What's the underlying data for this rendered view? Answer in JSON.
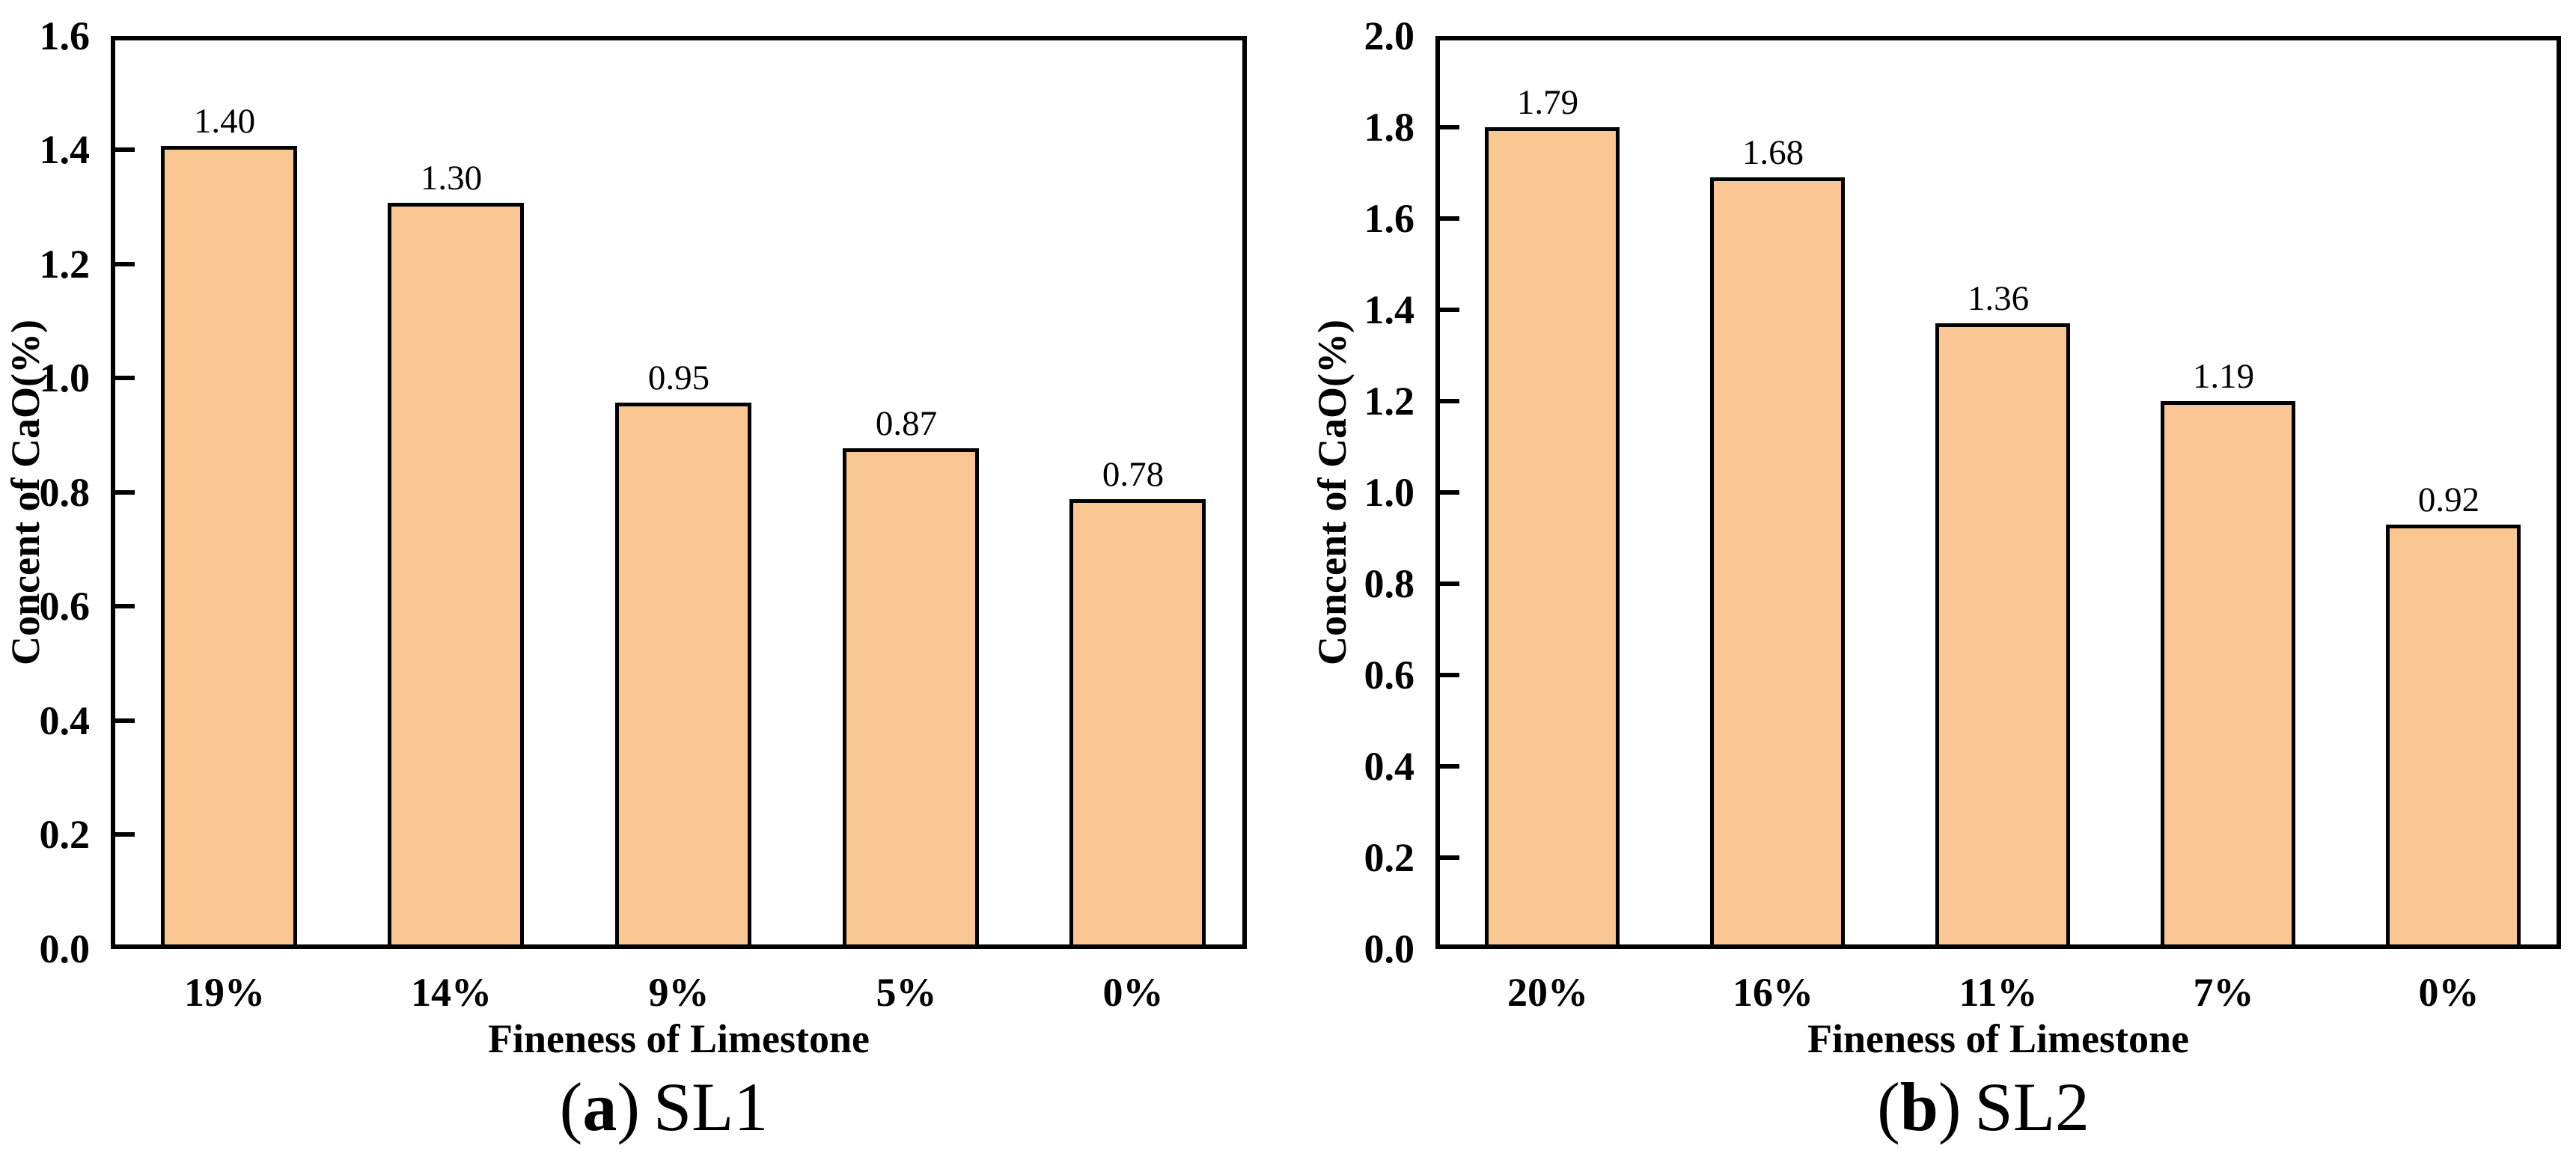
{
  "figure": {
    "background_color": "#FFFFFF",
    "bar_fill_color": "#FAC792",
    "bar_border_color": "#000000",
    "axis_color": "#000000"
  },
  "chart_data": [
    {
      "type": "bar",
      "panel": "left",
      "caption": {
        "open": "(",
        "letter": "a",
        "close": ")",
        "label": "SL1"
      },
      "xlabel": "Fineness of Limestone",
      "ylabel": "Concent of CaO(%)",
      "categories": [
        "19%",
        "14%",
        "9%",
        "5%",
        "0%"
      ],
      "values": [
        1.4,
        1.3,
        0.95,
        0.87,
        0.78
      ],
      "value_labels": [
        "1.40",
        "1.30",
        "0.95",
        "0.87",
        "0.78"
      ],
      "ylim": [
        0.0,
        1.6
      ],
      "ytick_labels": [
        "0.0",
        "0.2",
        "0.4",
        "0.6",
        "0.8",
        "1.0",
        "1.2",
        "1.4",
        "1.6"
      ],
      "grid": false,
      "legend": "none"
    },
    {
      "type": "bar",
      "panel": "right",
      "caption": {
        "open": "(",
        "letter": "b",
        "close": ")",
        "label": "SL2"
      },
      "xlabel": "Fineness of Limestone",
      "ylabel": "Concent of CaO(%)",
      "categories": [
        "20%",
        "16%",
        "11%",
        "7%",
        "0%"
      ],
      "values": [
        1.79,
        1.68,
        1.36,
        1.19,
        0.92
      ],
      "value_labels": [
        "1.79",
        "1.68",
        "1.36",
        "1.19",
        "0.92"
      ],
      "ylim": [
        0.0,
        2.0
      ],
      "ytick_labels": [
        "0.0",
        "0.2",
        "0.4",
        "0.6",
        "0.8",
        "1.0",
        "1.2",
        "1.4",
        "1.6",
        "1.8",
        "2.0"
      ],
      "grid": false,
      "legend": "none"
    }
  ]
}
